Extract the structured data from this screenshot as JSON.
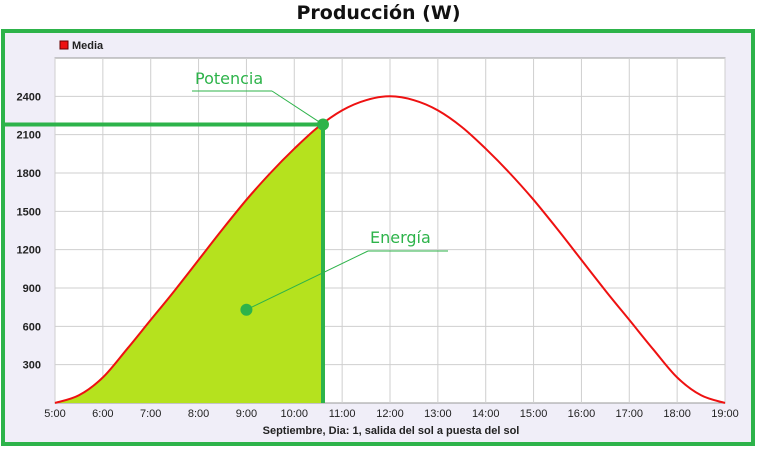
{
  "chart_data": {
    "type": "line",
    "title": "Producción (W)",
    "xlabel": "Septiembre, Dia: 1, salida del sol a puesta del sol",
    "ylabel": "",
    "x_ticks": [
      "5:00",
      "6:00",
      "7:00",
      "8:00",
      "9:00",
      "10:00",
      "11:00",
      "12:00",
      "13:00",
      "14:00",
      "15:00",
      "16:00",
      "17:00",
      "18:00",
      "19:00"
    ],
    "y_ticks": [
      300,
      600,
      900,
      1200,
      1500,
      1800,
      2100,
      2400
    ],
    "xlim": [
      5,
      19
    ],
    "ylim": [
      0,
      2700
    ],
    "grid": true,
    "legend": {
      "position": "top-left",
      "entries": [
        "Media"
      ]
    },
    "series": [
      {
        "name": "Media",
        "color": "#ee1111",
        "x": [
          5.0,
          5.5,
          6.0,
          6.5,
          7.0,
          7.5,
          8.0,
          8.5,
          9.0,
          9.5,
          10.0,
          10.5,
          11.0,
          11.5,
          12.0,
          12.5,
          13.0,
          13.5,
          14.0,
          14.5,
          15.0,
          15.5,
          16.0,
          16.5,
          17.0,
          17.5,
          18.0,
          18.5,
          19.0
        ],
        "y": [
          0,
          60,
          200,
          420,
          650,
          880,
          1120,
          1360,
          1590,
          1800,
          1990,
          2160,
          2290,
          2370,
          2400,
          2370,
          2290,
          2160,
          1990,
          1800,
          1590,
          1360,
          1120,
          880,
          650,
          420,
          200,
          60,
          0
        ]
      }
    ],
    "annotations": [
      {
        "label": "Potencia",
        "color": "#2db34a",
        "marker_x": 10.6,
        "marker_y": 2180,
        "refline_y": 2180,
        "refline_x": 10.6
      },
      {
        "label": "Energía",
        "color": "#2db34a",
        "marker_x": 9.0,
        "marker_y": 730,
        "fill_to_x": 10.6,
        "fill_color": "#b5e21e"
      }
    ],
    "colors": {
      "frame": "#2db34a",
      "plot_bg": "#ffffff",
      "outer_bg": "#f0eef8",
      "grid": "#cfcfcf"
    }
  }
}
